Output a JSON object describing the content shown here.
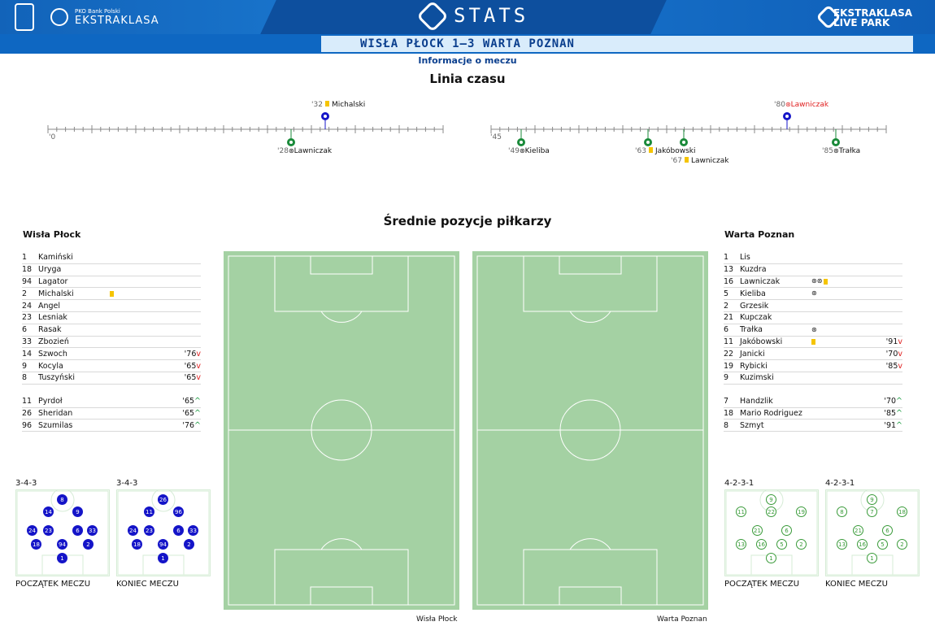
{
  "header": {
    "bank_line": "PKO Bank Polski",
    "league": "EKSTRAKLASA",
    "stats": "STATS",
    "live1": "EKSTRAKLASA",
    "live2": "LIVE PARK"
  },
  "match": {
    "score_line": "WISŁA PŁOCK 1–3 WARTA POZNAN",
    "info_link": "Informacje o meczu"
  },
  "timeline": {
    "title": "Linia czasu",
    "first_half_start": "'0",
    "second_half_start": "'45",
    "events": [
      {
        "minute": "'32",
        "type": "yellow",
        "player": "Michalski",
        "team": "home"
      },
      {
        "minute": "'28",
        "type": "goal",
        "player": "Lawniczak",
        "team": "away"
      },
      {
        "minute": "'80",
        "type": "owngoal",
        "player": "Lawniczak",
        "team": "home"
      },
      {
        "minute": "'49",
        "type": "goal",
        "player": "Kieliba",
        "team": "away"
      },
      {
        "minute": "'63",
        "type": "yellow",
        "player": "Jakóbowski",
        "team": "away"
      },
      {
        "minute": "'67",
        "type": "yellow",
        "player": "Lawniczak",
        "team": "away"
      },
      {
        "minute": "'85",
        "type": "goal",
        "player": "Trałka",
        "team": "away"
      }
    ]
  },
  "avg_title": "Średnie pozycje piłkarzy",
  "home": {
    "name": "Wisła Płock",
    "starters": [
      {
        "n": "1",
        "name": "Kamiński",
        "cards": "",
        "goals": "",
        "sub": ""
      },
      {
        "n": "18",
        "name": "Uryga",
        "cards": "",
        "goals": "",
        "sub": ""
      },
      {
        "n": "94",
        "name": "Lagator",
        "cards": "",
        "goals": "",
        "sub": ""
      },
      {
        "n": "2",
        "name": "Michalski",
        "cards": "Y",
        "goals": "",
        "sub": ""
      },
      {
        "n": "24",
        "name": "Angel",
        "cards": "",
        "goals": "",
        "sub": ""
      },
      {
        "n": "23",
        "name": "Lesniak",
        "cards": "",
        "goals": "",
        "sub": ""
      },
      {
        "n": "6",
        "name": "Rasak",
        "cards": "",
        "goals": "",
        "sub": ""
      },
      {
        "n": "33",
        "name": "Zbozień",
        "cards": "",
        "goals": "",
        "sub": ""
      },
      {
        "n": "14",
        "name": "Szwoch",
        "cards": "",
        "goals": "",
        "sub": "'76"
      },
      {
        "n": "9",
        "name": "Kocyla",
        "cards": "",
        "goals": "",
        "sub": "'65"
      },
      {
        "n": "8",
        "name": "Tuszyński",
        "cards": "",
        "goals": "",
        "sub": "'65"
      }
    ],
    "subs": [
      {
        "n": "11",
        "name": "Pyrdoł",
        "sub": "'65"
      },
      {
        "n": "26",
        "name": "Sheridan",
        "sub": "'65"
      },
      {
        "n": "96",
        "name": "Szumilas",
        "sub": "'76"
      }
    ],
    "formation_start": "3-4-3",
    "formation_end": "3-4-3",
    "start_label": "POCZĄTEK MECZU",
    "end_label": "KONIEC MECZU",
    "pitch_caption": "Wisła Płock"
  },
  "away": {
    "name": "Warta Poznan",
    "starters": [
      {
        "n": "1",
        "name": "Lis",
        "cards": "",
        "goals": "",
        "sub": ""
      },
      {
        "n": "13",
        "name": "Kuzdra",
        "cards": "",
        "goals": "",
        "sub": ""
      },
      {
        "n": "16",
        "name": "Lawniczak",
        "cards": "Y",
        "goals": "⊛⊛",
        "sub": ""
      },
      {
        "n": "5",
        "name": "Kieliba",
        "cards": "",
        "goals": "⊛",
        "sub": ""
      },
      {
        "n": "2",
        "name": "Grzesik",
        "cards": "",
        "goals": "",
        "sub": ""
      },
      {
        "n": "21",
        "name": "Kupczak",
        "cards": "",
        "goals": "",
        "sub": ""
      },
      {
        "n": "6",
        "name": "Trałka",
        "cards": "",
        "goals": "⊛",
        "sub": ""
      },
      {
        "n": "11",
        "name": "Jakóbowski",
        "cards": "Y",
        "goals": "",
        "sub": "'91"
      },
      {
        "n": "22",
        "name": "Janicki",
        "cards": "",
        "goals": "",
        "sub": "'70"
      },
      {
        "n": "19",
        "name": "Rybicki",
        "cards": "",
        "goals": "",
        "sub": "'85"
      },
      {
        "n": "9",
        "name": "Kuzimski",
        "cards": "",
        "goals": "",
        "sub": ""
      }
    ],
    "subs": [
      {
        "n": "7",
        "name": "Handzlik",
        "sub": "'70"
      },
      {
        "n": "18",
        "name": "Mario Rodriguez",
        "sub": "'85"
      },
      {
        "n": "8",
        "name": "Szmyt",
        "sub": "'91"
      }
    ],
    "formation_start": "4-2-3-1",
    "formation_end": "4-2-3-1",
    "start_label": "POCZĄTEK MECZU",
    "end_label": "KONIEC MECZU",
    "pitch_caption": "Warta Poznan"
  },
  "colors": {
    "accent": "#0e67c2",
    "home_dot": "#1414c8",
    "away_dot": "#3a9b3a",
    "pitch": "#a4d1a3",
    "yellow": "#f5c400"
  }
}
